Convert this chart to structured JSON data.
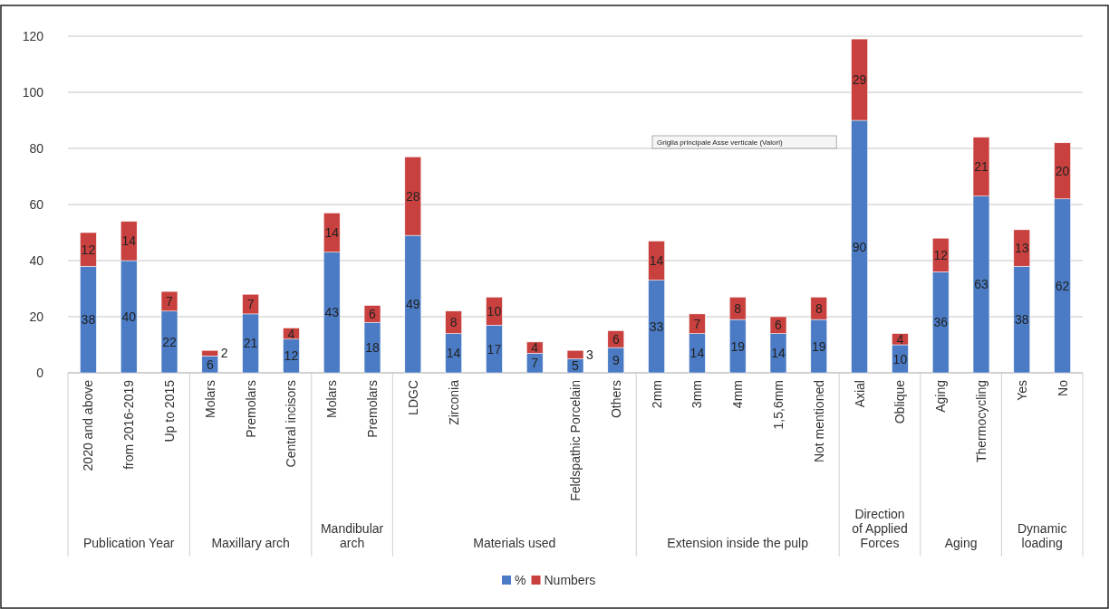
{
  "chart_data": {
    "type": "bar",
    "stacked": true,
    "categories": [
      "2020 and above",
      "from 2016-2019",
      "Up to 2015",
      "Molars",
      "Premolars",
      "Central incisors",
      "Molars",
      "Premolars",
      "LDGC",
      "Zirconia",
      null,
      null,
      "Feldspathic Porcelain",
      "Others",
      "2mm",
      "3mm",
      "4mm",
      "1,5,6mm",
      "Not mentioned",
      "Axial",
      "Oblique",
      "Aging",
      "Thermocycling",
      "Yes",
      "No"
    ],
    "series": [
      {
        "name": "%",
        "color": "#4a7bc4",
        "values": [
          38,
          40,
          22,
          6,
          21,
          12,
          43,
          18,
          49,
          14,
          17,
          7,
          5,
          9,
          33,
          14,
          19,
          14,
          19,
          90,
          10,
          36,
          63,
          38,
          62
        ]
      },
      {
        "name": "Numbers",
        "color": "#c8413f",
        "values": [
          12,
          14,
          7,
          2,
          7,
          4,
          14,
          6,
          28,
          8,
          10,
          4,
          3,
          6,
          14,
          7,
          8,
          6,
          8,
          29,
          4,
          12,
          21,
          13,
          20
        ]
      }
    ],
    "ylim": [
      0,
      120
    ],
    "yticks": [
      0,
      20,
      40,
      60,
      80,
      100,
      120
    ],
    "grid": "y",
    "legend": "bottom",
    "data_labels": true,
    "annotations": [
      "Publication Year",
      "Maxillary arch",
      "Mandibular arch",
      "Materials used",
      "Extension inside the pulp",
      "Direction of Applied Forces",
      "Aging",
      "Dynamic loading",
      "Griglia principale Asse verticale (Valori)"
    ]
  }
}
